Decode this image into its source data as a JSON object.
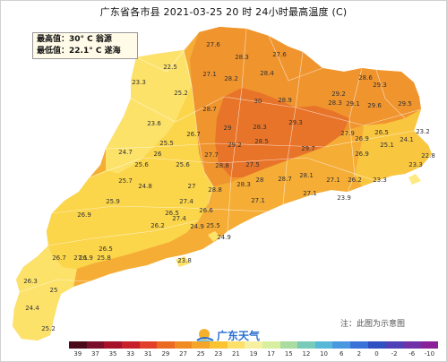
{
  "title": "广东省各市县 2021-03-25 20 时 24小时最高温度 (C)",
  "stats": {
    "max_label": "最高值：",
    "max_value": "30° C",
    "max_place": "翁源",
    "min_label": "最低值：",
    "min_value": "22.1° C",
    "min_place": "遂海"
  },
  "note": "注：此图为示意图",
  "logo_text": "广东天气",
  "legend_labels": [
    "39",
    "37",
    "35",
    "33",
    "31",
    "29",
    "27",
    "25",
    "23",
    "21",
    "19",
    "17",
    "15",
    "12",
    "10",
    "6",
    "2",
    "0",
    "-2",
    "-6",
    "-10"
  ],
  "legend_colors": [
    "#4a0a1a",
    "#7a0f2a",
    "#a5122a",
    "#c8202a",
    "#e2402a",
    "#ea6a22",
    "#f08a22",
    "#f5a62a",
    "#fbc232",
    "#fde06a",
    "#f7f0a0",
    "#d8efa0",
    "#a8dca0",
    "#78cbb8",
    "#58b8d8",
    "#4a98e0",
    "#3a72d8",
    "#2e50c0",
    "#5040b8",
    "#7030a8",
    "#8a2098"
  ],
  "region_colors": {
    "hot": "#e8742a",
    "warm": "#f0942e",
    "mild": "#f5ad36",
    "cool": "#f9c640",
    "cooler": "#fbd54a",
    "pale": "#fde26a",
    "coast": "#fdea84"
  },
  "stations": [
    {
      "value": "27.6"
    },
    {
      "value": "22.5"
    },
    {
      "value": "28.3"
    },
    {
      "value": "27.6"
    },
    {
      "value": "23.3"
    },
    {
      "value": "27.1"
    },
    {
      "value": "28.4"
    },
    {
      "value": "28.6"
    },
    {
      "value": "25.2"
    },
    {
      "value": "28.2"
    },
    {
      "value": "29.2"
    },
    {
      "value": "29.3"
    },
    {
      "value": "30"
    },
    {
      "value": "28.9"
    },
    {
      "value": "28.3"
    },
    {
      "value": "29.1"
    },
    {
      "value": "29.5"
    },
    {
      "value": "28.7"
    },
    {
      "value": "29.6"
    },
    {
      "value": "23.6"
    },
    {
      "value": "26.7"
    },
    {
      "value": "29"
    },
    {
      "value": "28.3"
    },
    {
      "value": "29.3"
    },
    {
      "value": "27.9"
    },
    {
      "value": "26.9"
    },
    {
      "value": "25.5"
    },
    {
      "value": "29.2"
    },
    {
      "value": "28.5"
    },
    {
      "value": "25.1"
    },
    {
      "value": "24.1"
    },
    {
      "value": "23.2"
    },
    {
      "value": "24.7"
    },
    {
      "value": "26"
    },
    {
      "value": "29.7"
    },
    {
      "value": "26.5"
    },
    {
      "value": "22.8"
    },
    {
      "value": "25.6"
    },
    {
      "value": "25.6"
    },
    {
      "value": "27.7"
    },
    {
      "value": "28.8"
    },
    {
      "value": "27.5"
    },
    {
      "value": "26.9"
    },
    {
      "value": "23.3"
    },
    {
      "value": "25.7"
    },
    {
      "value": "28"
    },
    {
      "value": "28.3"
    },
    {
      "value": "28.1"
    },
    {
      "value": "26.2"
    },
    {
      "value": "24.8"
    },
    {
      "value": "27"
    },
    {
      "value": "28.7"
    },
    {
      "value": "27.1"
    },
    {
      "value": "23.3"
    },
    {
      "value": "25.9"
    },
    {
      "value": "27.4"
    },
    {
      "value": "28.8"
    },
    {
      "value": "27.1"
    },
    {
      "value": "24.9"
    },
    {
      "value": "27.1"
    },
    {
      "value": "23.9"
    },
    {
      "value": "26.9"
    },
    {
      "value": "27.4"
    },
    {
      "value": "26.6"
    },
    {
      "value": "26.5"
    },
    {
      "value": "26.2"
    },
    {
      "value": "25.5"
    },
    {
      "value": "24.9"
    },
    {
      "value": "26.5"
    },
    {
      "value": "26.9"
    },
    {
      "value": "26.7"
    },
    {
      "value": "27.1"
    },
    {
      "value": "25.8"
    },
    {
      "value": "23.8"
    },
    {
      "value": "26.3"
    },
    {
      "value": "25"
    },
    {
      "value": "24.4"
    },
    {
      "value": "25.2"
    }
  ]
}
